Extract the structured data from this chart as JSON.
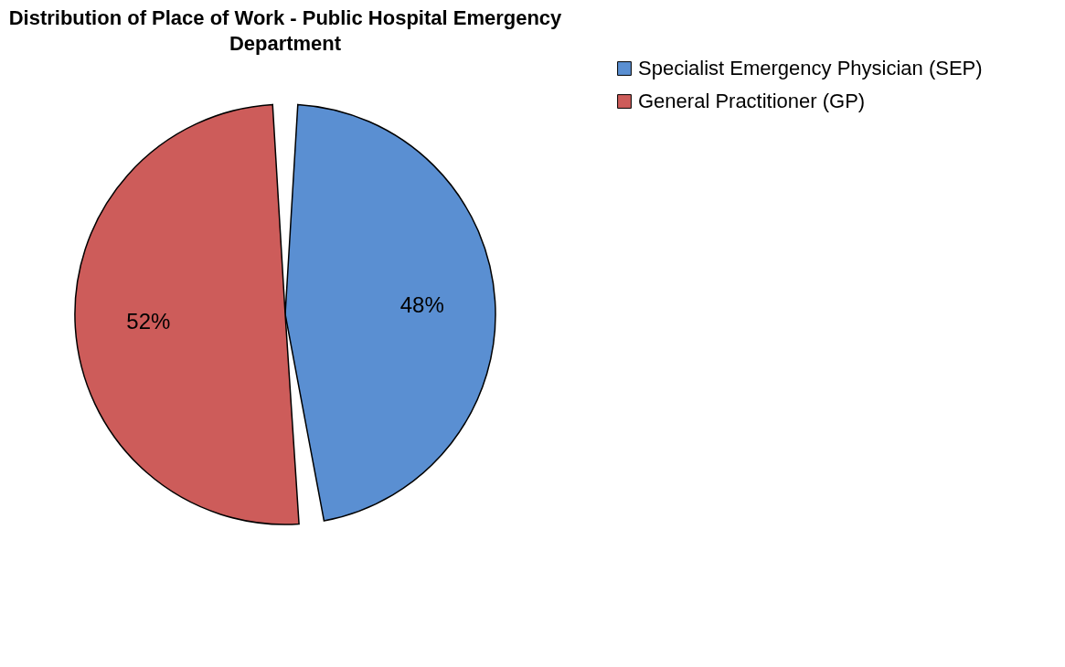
{
  "chart_data": {
    "type": "pie",
    "title": "Distribution of Place of Work - Public Hospital Emergency Department",
    "categories": [
      "Specialist Emergency Physician (SEP)",
      "General Practitioner (GP)"
    ],
    "values": [
      48,
      52
    ],
    "value_labels": [
      "48%",
      "52%"
    ],
    "colors": [
      "#5a8fd2",
      "#cd5c5a"
    ],
    "legend": "right"
  }
}
